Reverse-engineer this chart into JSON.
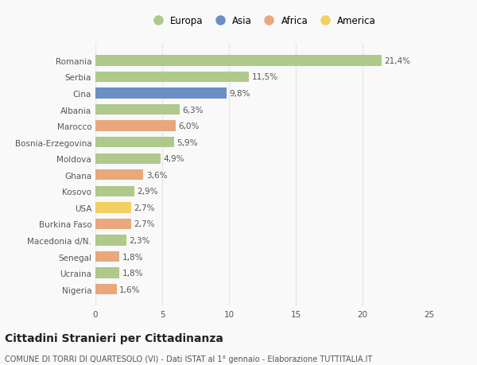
{
  "categories": [
    "Romania",
    "Serbia",
    "Cina",
    "Albania",
    "Marocco",
    "Bosnia-Erzegovina",
    "Moldova",
    "Ghana",
    "Kosovo",
    "USA",
    "Burkina Faso",
    "Macedonia d/N.",
    "Senegal",
    "Ucraina",
    "Nigeria"
  ],
  "values": [
    21.4,
    11.5,
    9.8,
    6.3,
    6.0,
    5.9,
    4.9,
    3.6,
    2.9,
    2.7,
    2.7,
    2.3,
    1.8,
    1.8,
    1.6
  ],
  "continents": [
    "Europa",
    "Europa",
    "Asia",
    "Europa",
    "Africa",
    "Europa",
    "Europa",
    "Africa",
    "Europa",
    "America",
    "Africa",
    "Europa",
    "Africa",
    "Europa",
    "Africa"
  ],
  "colors": {
    "Europa": "#aec98a",
    "Asia": "#6b8fc4",
    "Africa": "#e8a87c",
    "America": "#f0d060"
  },
  "xlim": [
    0,
    25
  ],
  "xticks": [
    0,
    5,
    10,
    15,
    20,
    25
  ],
  "title": "Cittadini Stranieri per Cittadinanza",
  "subtitle": "COMUNE DI TORRI DI QUARTESOLO (VI) - Dati ISTAT al 1° gennaio - Elaborazione TUTTITALIA.IT",
  "background_color": "#f9f9f9",
  "grid_color": "#e8e8e8",
  "bar_height": 0.65,
  "label_fontsize": 7.5,
  "tick_fontsize": 7.5,
  "title_fontsize": 10,
  "subtitle_fontsize": 7.0,
  "legend_order": [
    "Europa",
    "Asia",
    "Africa",
    "America"
  ]
}
